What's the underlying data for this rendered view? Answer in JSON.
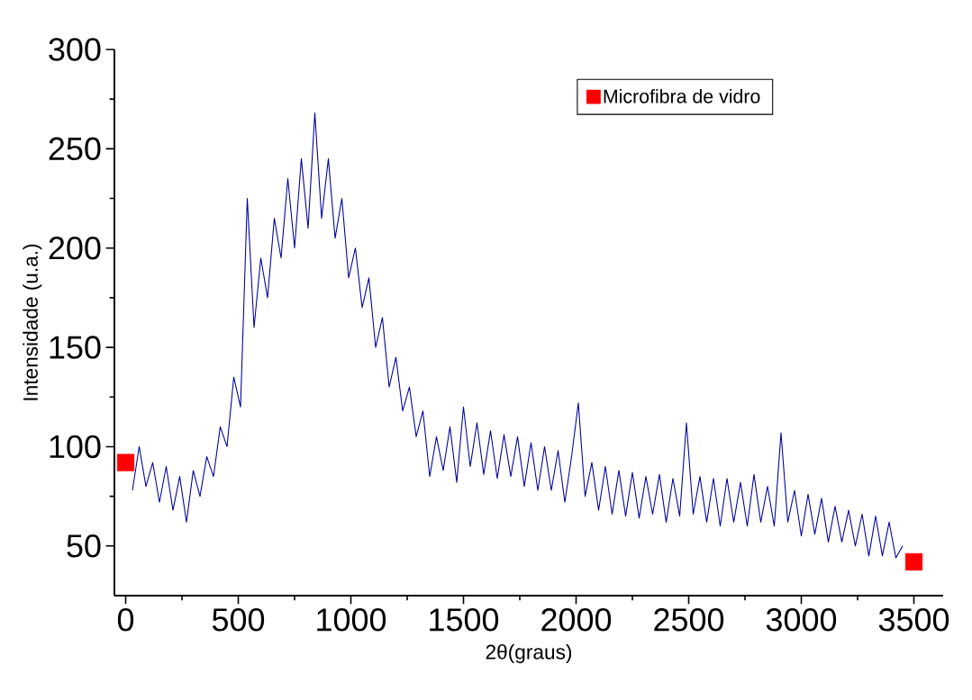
{
  "chart_data": {
    "type": "line",
    "xlabel": "2θ(graus)",
    "ylabel": "Intensidade (u.a.)",
    "xlim": [
      -50,
      3630
    ],
    "ylim": [
      25,
      300
    ],
    "xticks": [
      0,
      500,
      1000,
      1500,
      2000,
      2500,
      3000,
      3500
    ],
    "yticks": [
      50,
      100,
      150,
      200,
      250,
      300
    ],
    "grid": false,
    "legend": "top right",
    "series": [
      {
        "color": "#00009c",
        "line_style": "solid",
        "marker": "none",
        "x": [
          30,
          60,
          90,
          120,
          150,
          180,
          210,
          240,
          270,
          300,
          330,
          360,
          390,
          420,
          450,
          480,
          510,
          540,
          570,
          600,
          630,
          660,
          690,
          720,
          750,
          780,
          810,
          840,
          870,
          900,
          930,
          960,
          990,
          1020,
          1050,
          1080,
          1110,
          1140,
          1170,
          1200,
          1230,
          1260,
          1290,
          1320,
          1350,
          1380,
          1410,
          1440,
          1470,
          1500,
          1530,
          1560,
          1590,
          1620,
          1650,
          1680,
          1710,
          1740,
          1770,
          1800,
          1830,
          1860,
          1890,
          1920,
          1950,
          1980,
          2010,
          2040,
          2070,
          2100,
          2130,
          2160,
          2190,
          2220,
          2250,
          2280,
          2310,
          2340,
          2370,
          2400,
          2430,
          2460,
          2490,
          2520,
          2550,
          2580,
          2610,
          2640,
          2670,
          2700,
          2730,
          2760,
          2790,
          2820,
          2850,
          2880,
          2910,
          2940,
          2970,
          3000,
          3030,
          3060,
          3090,
          3120,
          3150,
          3180,
          3210,
          3240,
          3270,
          3300,
          3330,
          3360,
          3390,
          3420,
          3450
        ],
        "values": [
          78,
          100,
          80,
          92,
          72,
          90,
          68,
          85,
          62,
          88,
          75,
          95,
          85,
          110,
          100,
          135,
          120,
          225,
          160,
          195,
          175,
          215,
          195,
          235,
          200,
          245,
          210,
          268,
          215,
          245,
          205,
          225,
          185,
          200,
          170,
          185,
          150,
          165,
          130,
          145,
          118,
          130,
          105,
          118,
          85,
          105,
          88,
          110,
          82,
          120,
          90,
          112,
          86,
          108,
          84,
          106,
          85,
          105,
          80,
          102,
          78,
          100,
          78,
          98,
          72,
          95,
          122,
          75,
          92,
          68,
          90,
          66,
          88,
          65,
          87,
          64,
          85,
          66,
          86,
          62,
          84,
          65,
          112,
          66,
          85,
          62,
          84,
          60,
          84,
          62,
          82,
          60,
          86,
          62,
          80,
          60,
          107,
          62,
          78,
          55,
          76,
          56,
          74,
          52,
          70,
          52,
          68,
          50,
          66,
          45,
          65,
          45,
          62,
          44,
          50
        ]
      },
      {
        "type": "scatter",
        "name": "Microfibra de vidro",
        "color": "#ff0000",
        "marker": "square",
        "x": [
          0,
          3500
        ],
        "values": [
          92,
          42
        ]
      }
    ]
  }
}
